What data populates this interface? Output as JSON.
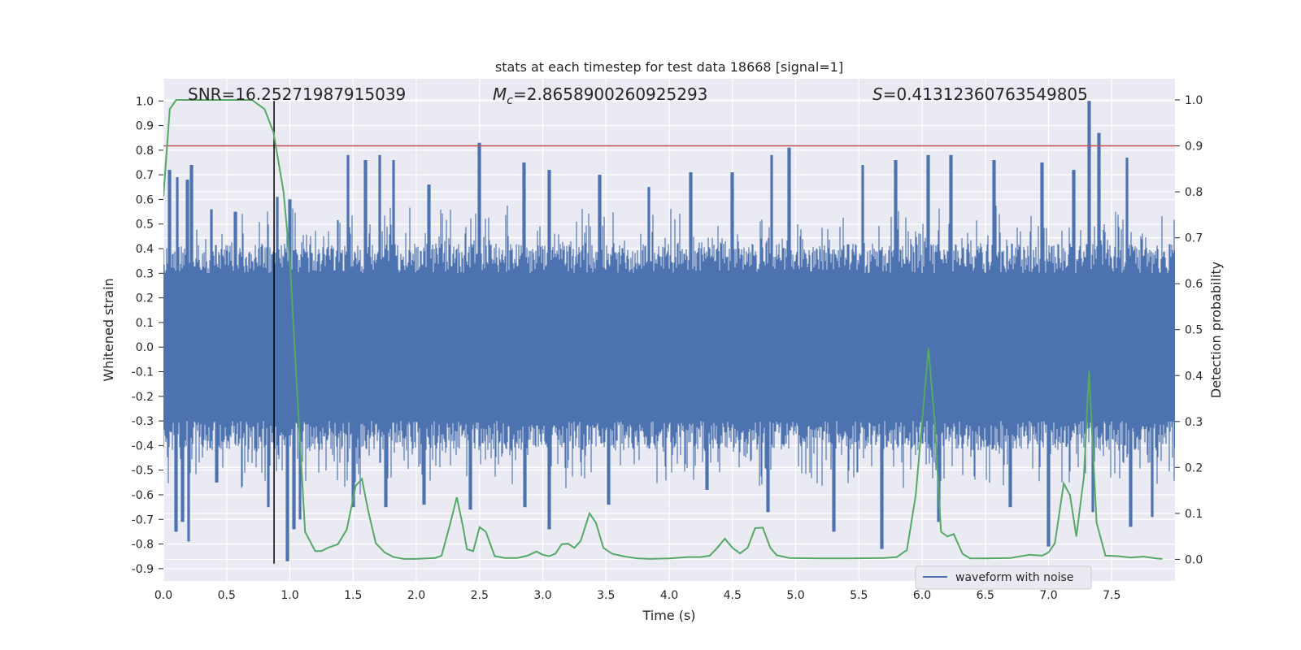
{
  "chart_data": {
    "type": "line",
    "title": "stats at each timestep for test data 18668 [signal=1]",
    "xlabel": "Time (s)",
    "ylabel_left": "Whitened strain",
    "ylabel_right": "Detection probability",
    "xlim": [
      0.0,
      8.0
    ],
    "ylim_left": [
      -0.95,
      1.09
    ],
    "ylim_right": [
      -0.047,
      1.046
    ],
    "x_ticks": [
      "0.0",
      "0.5",
      "1.0",
      "1.5",
      "2.0",
      "2.5",
      "3.0",
      "3.5",
      "4.0",
      "4.5",
      "5.0",
      "5.5",
      "6.0",
      "6.5",
      "7.0",
      "7.5"
    ],
    "y_ticks_left": [
      "1.0",
      "0.9",
      "0.8",
      "0.7",
      "0.6",
      "0.5",
      "0.4",
      "0.3",
      "0.2",
      "0.1",
      "0.0",
      "-0.1",
      "-0.2",
      "-0.3",
      "-0.4",
      "-0.5",
      "-0.6",
      "-0.7",
      "-0.8",
      "-0.9"
    ],
    "y_ticks_right": [
      "1.0",
      "0.9",
      "0.8",
      "0.7",
      "0.6",
      "0.5",
      "0.4",
      "0.3",
      "0.2",
      "0.1",
      "0.0"
    ],
    "grid": true,
    "annotations": {
      "snr": "SNR=16.25271987915039",
      "mc_symbol": "M",
      "mc_subscript": "c",
      "mc_value": "=2.8658900260925293",
      "s_symbol": "S",
      "s_value": "=0.41312360763549805"
    },
    "threshold_line": {
      "axis": "right",
      "value": 0.9,
      "color": "#c44e52"
    },
    "marker_vline": {
      "x": 0.875,
      "y_from": -0.88,
      "y_to": 1.0,
      "color": "#000000"
    },
    "legend": {
      "label": "waveform with noise",
      "location": "lower-right"
    },
    "waveform": {
      "name": "waveform with noise",
      "color": "#4c72b0",
      "band_typical": [
        -0.3,
        0.3
      ],
      "peaks_max": [
        {
          "x": 0.05,
          "y": 0.72
        },
        {
          "x": 0.11,
          "y": 0.69
        },
        {
          "x": 0.19,
          "y": 0.68
        },
        {
          "x": 0.22,
          "y": 0.74
        },
        {
          "x": 0.38,
          "y": 0.56
        },
        {
          "x": 0.57,
          "y": 0.55
        },
        {
          "x": 0.9,
          "y": 0.61
        },
        {
          "x": 1.0,
          "y": 0.6
        },
        {
          "x": 1.46,
          "y": 0.78
        },
        {
          "x": 1.6,
          "y": 0.76
        },
        {
          "x": 1.71,
          "y": 0.78
        },
        {
          "x": 1.82,
          "y": 0.76
        },
        {
          "x": 2.1,
          "y": 0.66
        },
        {
          "x": 2.5,
          "y": 0.83
        },
        {
          "x": 2.85,
          "y": 0.75
        },
        {
          "x": 3.05,
          "y": 0.72
        },
        {
          "x": 3.45,
          "y": 0.7
        },
        {
          "x": 3.84,
          "y": 0.65
        },
        {
          "x": 4.17,
          "y": 0.71
        },
        {
          "x": 4.5,
          "y": 0.71
        },
        {
          "x": 4.81,
          "y": 0.78
        },
        {
          "x": 4.95,
          "y": 0.81
        },
        {
          "x": 5.53,
          "y": 0.74
        },
        {
          "x": 5.79,
          "y": 0.76
        },
        {
          "x": 6.05,
          "y": 0.78
        },
        {
          "x": 6.23,
          "y": 0.78
        },
        {
          "x": 6.57,
          "y": 0.76
        },
        {
          "x": 6.95,
          "y": 0.75
        },
        {
          "x": 7.2,
          "y": 0.72
        },
        {
          "x": 7.32,
          "y": 1.0
        },
        {
          "x": 7.4,
          "y": 0.87
        },
        {
          "x": 7.62,
          "y": 0.77
        }
      ],
      "peaks_min": [
        {
          "x": 0.1,
          "y": -0.75
        },
        {
          "x": 0.15,
          "y": -0.71
        },
        {
          "x": 0.2,
          "y": -0.79
        },
        {
          "x": 0.42,
          "y": -0.55
        },
        {
          "x": 0.83,
          "y": -0.65
        },
        {
          "x": 0.98,
          "y": -0.87
        },
        {
          "x": 1.03,
          "y": -0.74
        },
        {
          "x": 1.08,
          "y": -0.7
        },
        {
          "x": 1.5,
          "y": -0.65
        },
        {
          "x": 1.76,
          "y": -0.65
        },
        {
          "x": 2.06,
          "y": -0.64
        },
        {
          "x": 2.43,
          "y": -0.66
        },
        {
          "x": 2.86,
          "y": -0.65
        },
        {
          "x": 3.05,
          "y": -0.74
        },
        {
          "x": 3.52,
          "y": -0.64
        },
        {
          "x": 4.3,
          "y": -0.58
        },
        {
          "x": 4.78,
          "y": -0.67
        },
        {
          "x": 5.3,
          "y": -0.75
        },
        {
          "x": 5.68,
          "y": -0.82
        },
        {
          "x": 6.13,
          "y": -0.71
        },
        {
          "x": 6.7,
          "y": -0.65
        },
        {
          "x": 7.0,
          "y": -0.81
        },
        {
          "x": 7.35,
          "y": -0.67
        },
        {
          "x": 7.65,
          "y": -0.73
        },
        {
          "x": 7.82,
          "y": -0.69
        }
      ]
    },
    "detection_probability": {
      "name": "detection probability",
      "color": "#55a868",
      "points": [
        [
          0.0,
          0.79
        ],
        [
          0.05,
          0.98
        ],
        [
          0.1,
          1.0
        ],
        [
          0.2,
          1.0
        ],
        [
          0.3,
          1.0
        ],
        [
          0.5,
          1.0
        ],
        [
          0.7,
          1.0
        ],
        [
          0.8,
          0.98
        ],
        [
          0.87,
          0.93
        ],
        [
          0.95,
          0.8
        ],
        [
          1.0,
          0.65
        ],
        [
          1.05,
          0.4
        ],
        [
          1.12,
          0.06
        ],
        [
          1.2,
          0.018
        ],
        [
          1.25,
          0.018
        ],
        [
          1.3,
          0.025
        ],
        [
          1.38,
          0.033
        ],
        [
          1.45,
          0.065
        ],
        [
          1.52,
          0.16
        ],
        [
          1.57,
          0.175
        ],
        [
          1.62,
          0.105
        ],
        [
          1.68,
          0.035
        ],
        [
          1.75,
          0.015
        ],
        [
          1.82,
          0.005
        ],
        [
          1.9,
          0.001
        ],
        [
          2.0,
          0.001
        ],
        [
          2.15,
          0.003
        ],
        [
          2.2,
          0.008
        ],
        [
          2.27,
          0.08
        ],
        [
          2.32,
          0.135
        ],
        [
          2.37,
          0.07
        ],
        [
          2.4,
          0.022
        ],
        [
          2.45,
          0.018
        ],
        [
          2.5,
          0.07
        ],
        [
          2.55,
          0.06
        ],
        [
          2.62,
          0.007
        ],
        [
          2.7,
          0.003
        ],
        [
          2.8,
          0.003
        ],
        [
          2.88,
          0.008
        ],
        [
          2.95,
          0.017
        ],
        [
          3.0,
          0.01
        ],
        [
          3.05,
          0.007
        ],
        [
          3.1,
          0.012
        ],
        [
          3.15,
          0.033
        ],
        [
          3.2,
          0.034
        ],
        [
          3.25,
          0.025
        ],
        [
          3.3,
          0.04
        ],
        [
          3.37,
          0.1
        ],
        [
          3.42,
          0.08
        ],
        [
          3.48,
          0.025
        ],
        [
          3.55,
          0.012
        ],
        [
          3.65,
          0.006
        ],
        [
          3.75,
          0.002
        ],
        [
          3.85,
          0.001
        ],
        [
          4.0,
          0.002
        ],
        [
          4.15,
          0.005
        ],
        [
          4.25,
          0.005
        ],
        [
          4.32,
          0.008
        ],
        [
          4.38,
          0.025
        ],
        [
          4.44,
          0.045
        ],
        [
          4.5,
          0.025
        ],
        [
          4.56,
          0.013
        ],
        [
          4.62,
          0.025
        ],
        [
          4.68,
          0.068
        ],
        [
          4.74,
          0.069
        ],
        [
          4.8,
          0.025
        ],
        [
          4.85,
          0.009
        ],
        [
          4.95,
          0.003
        ],
        [
          5.2,
          0.002
        ],
        [
          5.4,
          0.002
        ],
        [
          5.7,
          0.003
        ],
        [
          5.8,
          0.005
        ],
        [
          5.88,
          0.02
        ],
        [
          5.95,
          0.14
        ],
        [
          6.0,
          0.3
        ],
        [
          6.05,
          0.46
        ],
        [
          6.1,
          0.3
        ],
        [
          6.15,
          0.06
        ],
        [
          6.2,
          0.05
        ],
        [
          6.25,
          0.055
        ],
        [
          6.32,
          0.012
        ],
        [
          6.38,
          0.002
        ],
        [
          6.5,
          0.002
        ],
        [
          6.7,
          0.003
        ],
        [
          6.85,
          0.01
        ],
        [
          6.95,
          0.008
        ],
        [
          7.0,
          0.015
        ],
        [
          7.05,
          0.035
        ],
        [
          7.12,
          0.165
        ],
        [
          7.17,
          0.14
        ],
        [
          7.22,
          0.05
        ],
        [
          7.28,
          0.18
        ],
        [
          7.32,
          0.41
        ],
        [
          7.38,
          0.08
        ],
        [
          7.45,
          0.008
        ],
        [
          7.55,
          0.007
        ],
        [
          7.65,
          0.004
        ],
        [
          7.75,
          0.006
        ],
        [
          7.85,
          0.002
        ],
        [
          7.9,
          0.001
        ]
      ]
    }
  }
}
